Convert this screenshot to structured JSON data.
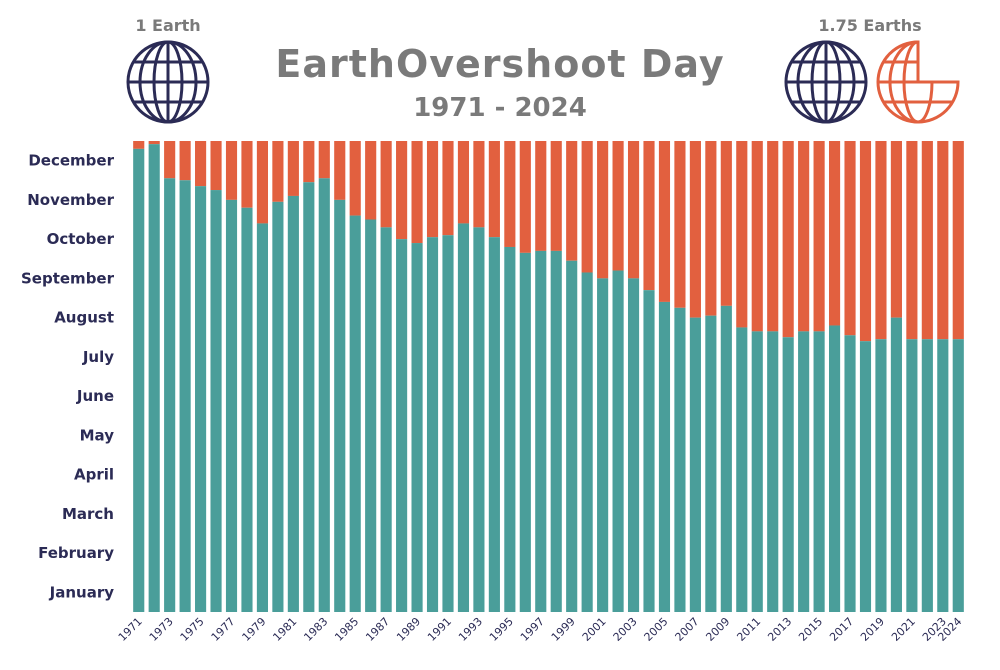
{
  "header": {
    "title": "EarthOvershoot Day",
    "subtitle": "1971 - 2024",
    "left_caption": "1 Earth",
    "right_caption": "1.75 Earths"
  },
  "colors": {
    "within": "#4a9e9a",
    "overshoot": "#e2603f",
    "label": "#2b2b55",
    "title": "#7a7a7a",
    "globe_primary": "#2b2b55",
    "globe_partial": "#e2603f"
  },
  "icons": [
    "globe-icon",
    "globe-icon",
    "partial-globe-icon"
  ],
  "chart_data": {
    "type": "bar",
    "stacked": true,
    "y_categories": [
      "January",
      "February",
      "March",
      "April",
      "May",
      "June",
      "July",
      "August",
      "September",
      "October",
      "November",
      "December"
    ],
    "ylim": [
      0,
      12
    ],
    "x": [
      1971,
      1972,
      1973,
      1974,
      1975,
      1976,
      1977,
      1978,
      1979,
      1980,
      1981,
      1982,
      1983,
      1984,
      1985,
      1986,
      1987,
      1988,
      1989,
      1990,
      1991,
      1992,
      1993,
      1994,
      1995,
      1996,
      1997,
      1998,
      1999,
      2000,
      2001,
      2002,
      2003,
      2004,
      2005,
      2006,
      2007,
      2008,
      2009,
      2010,
      2011,
      2012,
      2013,
      2014,
      2015,
      2016,
      2017,
      2018,
      2019,
      2020,
      2021,
      2022,
      2023,
      2024
    ],
    "x_tick_labels": [
      "1971",
      "",
      "1973",
      "",
      "1975",
      "",
      "1977",
      "",
      "1979",
      "",
      "1981",
      "",
      "1983",
      "",
      "1985",
      "",
      "1987",
      "",
      "1989",
      "",
      "1991",
      "",
      "1993",
      "",
      "1995",
      "",
      "1997",
      "",
      "1999",
      "",
      "2001",
      "",
      "2003",
      "",
      "2005",
      "",
      "2007",
      "",
      "2009",
      "",
      "2011",
      "",
      "2013",
      "",
      "2015",
      "",
      "2017",
      "",
      "2019",
      "",
      "2021",
      "",
      "2023",
      "2024"
    ],
    "values": [
      11.8,
      11.92,
      11.05,
      11.0,
      10.85,
      10.75,
      10.5,
      10.3,
      9.9,
      10.45,
      10.6,
      10.95,
      11.05,
      10.5,
      10.1,
      10.0,
      9.8,
      9.5,
      9.4,
      9.55,
      9.6,
      9.9,
      9.8,
      9.55,
      9.3,
      9.15,
      9.2,
      9.2,
      8.95,
      8.65,
      8.5,
      8.7,
      8.5,
      8.2,
      7.9,
      7.75,
      7.5,
      7.55,
      7.8,
      7.25,
      7.15,
      7.15,
      7.0,
      7.15,
      7.15,
      7.3,
      7.05,
      6.9,
      6.95,
      7.5,
      6.95,
      6.95,
      6.95,
      6.95
    ],
    "series": [
      {
        "role": "within",
        "values_ref": "values"
      },
      {
        "role": "overshoot",
        "fills_to": 12
      }
    ]
  }
}
